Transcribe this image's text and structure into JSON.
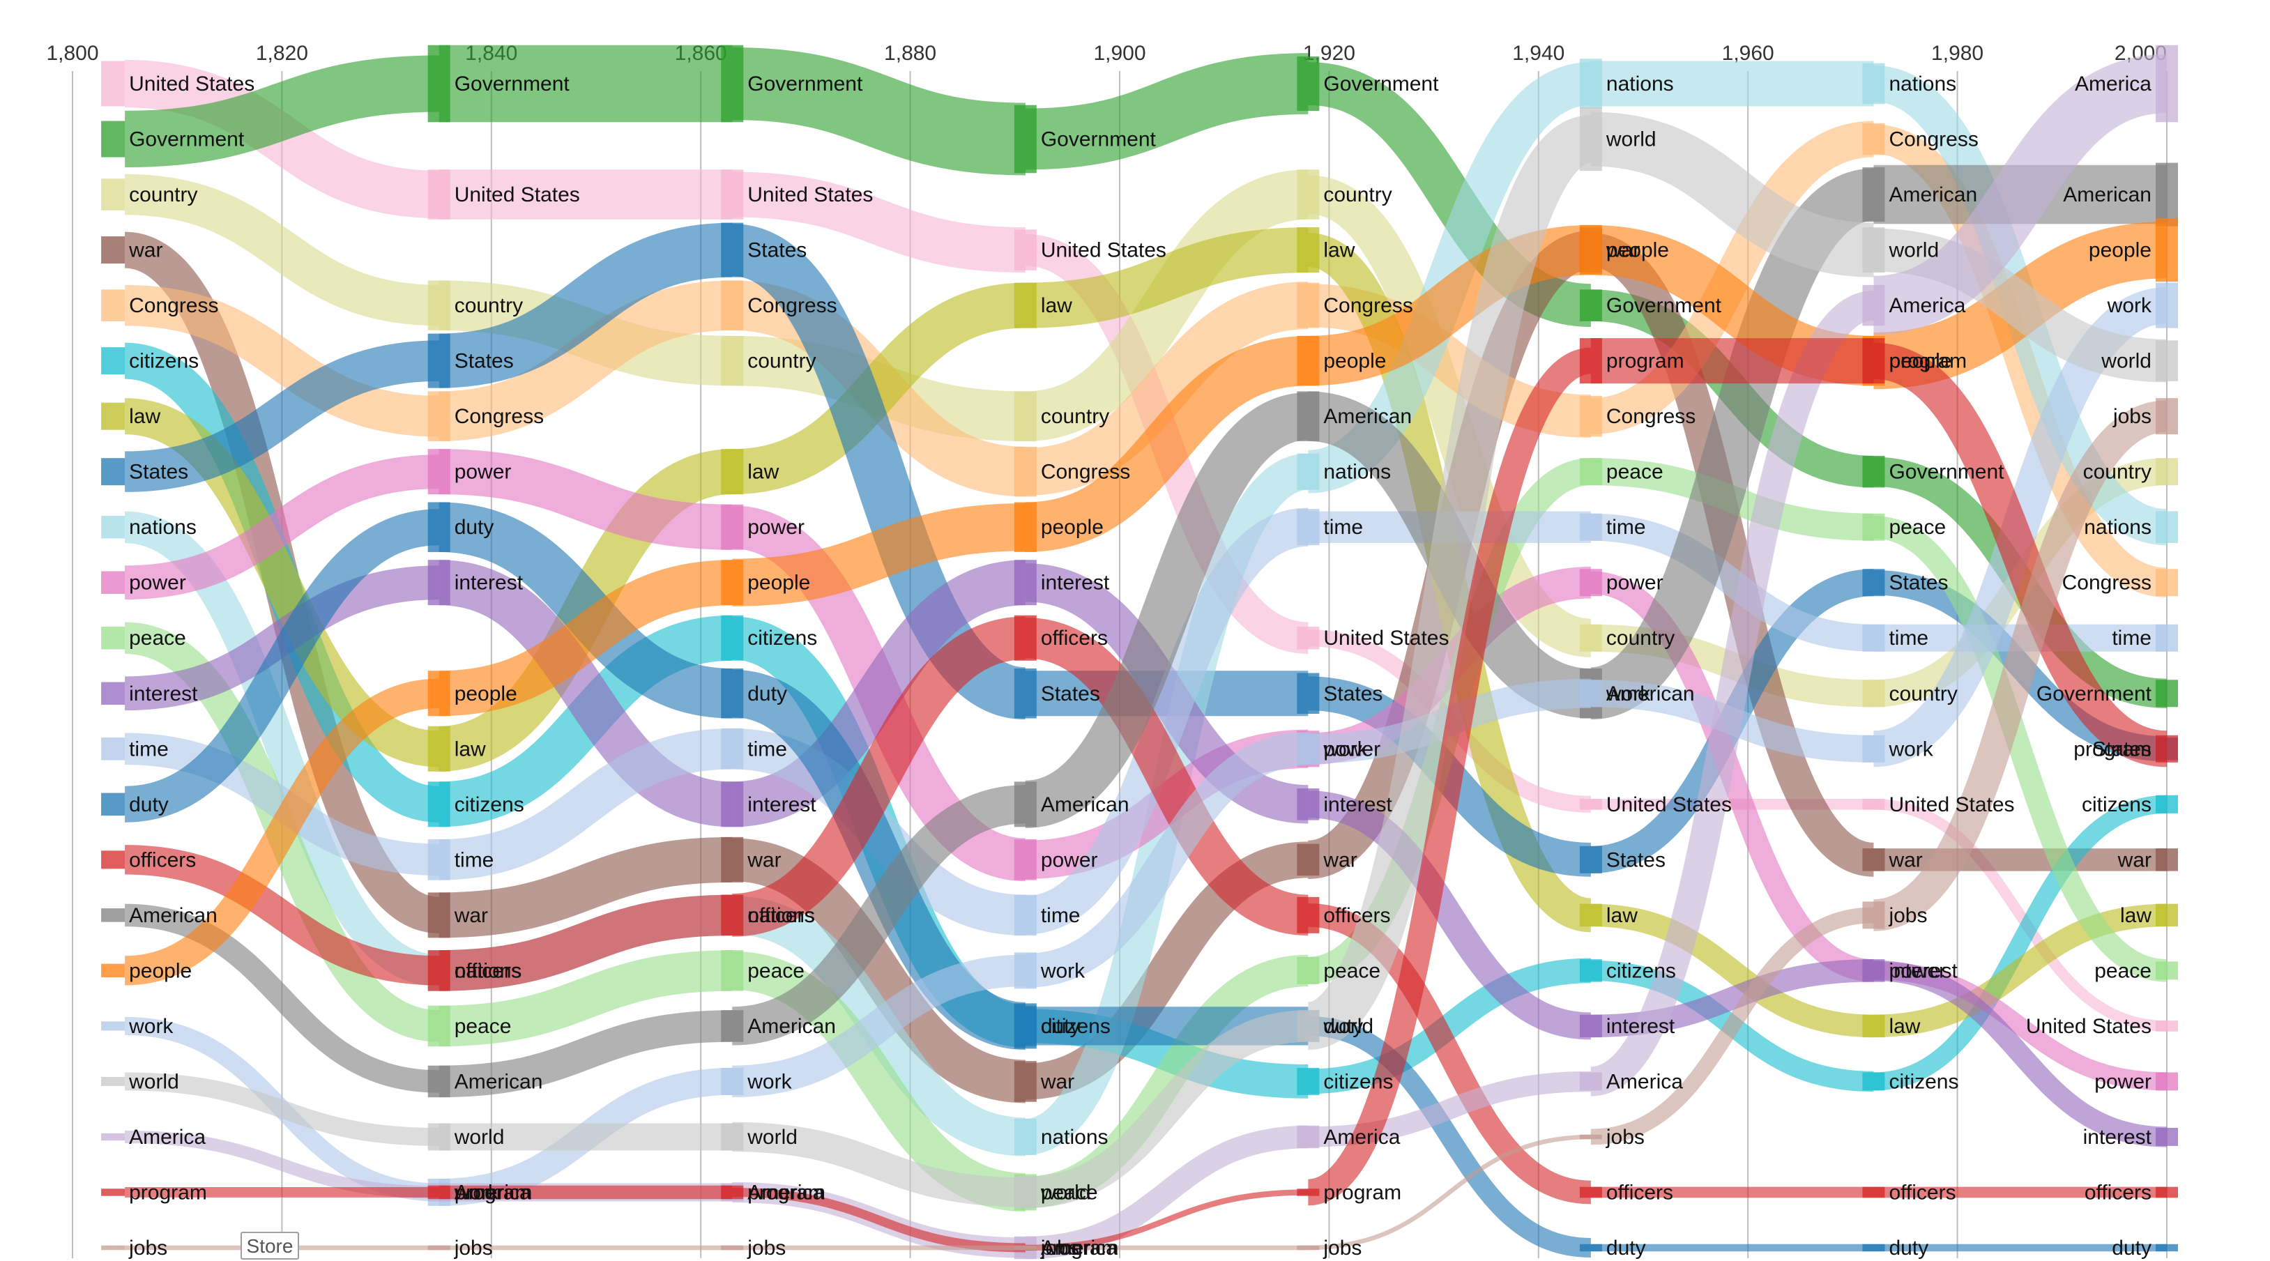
{
  "store_button": {
    "label": "Store"
  },
  "chart_data": {
    "type": "bump",
    "title": "",
    "xlabel": "",
    "ylabel": "",
    "xlim": [
      1800,
      2000
    ],
    "x_ticks": [
      1800,
      1820,
      1840,
      1860,
      1880,
      1900,
      1920,
      1940,
      1960,
      1980,
      2000
    ],
    "x_tick_labels": [
      "1,800",
      "1,820",
      "1,840",
      "1,860",
      "1,880",
      "1,900",
      "1,920",
      "1,940",
      "1,960",
      "1,980",
      "2,000"
    ],
    "rank_count": 22,
    "columns": [
      1805,
      1835,
      1863,
      1891,
      1918,
      1945,
      1972,
      2000
    ],
    "colors": {
      "United States": "#f7b6d2",
      "Government": "#2ca02c",
      "country": "#dbdb8d",
      "war": "#8c564b",
      "Congress": "#ffbb78",
      "citizens": "#17becf",
      "law": "#bcbd22",
      "States": "#1f77b4",
      "nations": "#9edae5",
      "power": "#e377c2",
      "peace": "#98df8a",
      "interest": "#9467bd",
      "time": "#aec7e8",
      "duty": "#1f77b4",
      "officers": "#d62728",
      "American": "#7f7f7f",
      "people": "#ff7f0e",
      "work": "#aec7e8",
      "world": "#c7c7c7",
      "America": "#c5b0d5",
      "program": "#d62728",
      "jobs": "#c49c94"
    },
    "series": [
      {
        "name": "United States",
        "ranks": [
          1,
          3,
          3,
          4,
          11,
          14,
          14,
          18
        ],
        "weights": [
          0.5,
          0.55,
          0.55,
          0.45,
          0.25,
          0.12,
          0.12,
          0.12
        ]
      },
      {
        "name": "Government",
        "ranks": [
          2,
          1,
          1,
          2,
          1,
          5,
          8,
          12
        ],
        "weights": [
          0.4,
          0.85,
          0.85,
          0.75,
          0.6,
          0.35,
          0.35,
          0.3
        ]
      },
      {
        "name": "country",
        "ranks": [
          3,
          5,
          6,
          7,
          3,
          11,
          12,
          8
        ],
        "weights": [
          0.35,
          0.55,
          0.55,
          0.55,
          0.55,
          0.3,
          0.3,
          0.3
        ]
      },
      {
        "name": "war",
        "ranks": [
          4,
          16,
          15,
          19,
          15,
          4,
          15,
          15
        ],
        "weights": [
          0.3,
          0.5,
          0.5,
          0.45,
          0.35,
          0.5,
          0.25,
          0.25
        ]
      },
      {
        "name": "Congress",
        "ranks": [
          5,
          7,
          5,
          8,
          5,
          7,
          2,
          10
        ],
        "weights": [
          0.35,
          0.55,
          0.55,
          0.55,
          0.5,
          0.45,
          0.35,
          0.3
        ]
      },
      {
        "name": "citizens",
        "ranks": [
          6,
          14,
          11,
          18,
          19,
          17,
          19,
          14
        ],
        "weights": [
          0.3,
          0.5,
          0.5,
          0.45,
          0.3,
          0.25,
          0.2,
          0.2
        ]
      },
      {
        "name": "law",
        "ranks": [
          7,
          13,
          8,
          5,
          4,
          16,
          18,
          16
        ],
        "weights": [
          0.3,
          0.5,
          0.5,
          0.5,
          0.5,
          0.25,
          0.25,
          0.25
        ]
      },
      {
        "name": "States",
        "ranks": [
          8,
          6,
          4,
          12,
          12,
          15,
          10,
          13
        ],
        "weights": [
          0.3,
          0.6,
          0.6,
          0.55,
          0.45,
          0.3,
          0.3,
          0.25
        ]
      },
      {
        "name": "nations",
        "ranks": [
          9,
          17,
          16,
          20,
          8,
          1,
          1,
          9
        ],
        "weights": [
          0.25,
          0.45,
          0.45,
          0.4,
          0.4,
          0.55,
          0.45,
          0.35
        ]
      },
      {
        "name": "power",
        "ranks": [
          10,
          8,
          9,
          15,
          13,
          10,
          17,
          19
        ],
        "weights": [
          0.25,
          0.5,
          0.5,
          0.45,
          0.4,
          0.3,
          0.2,
          0.2
        ]
      },
      {
        "name": "peace",
        "ranks": [
          11,
          18,
          17,
          21,
          17,
          8,
          9,
          17
        ],
        "weights": [
          0.25,
          0.45,
          0.45,
          0.4,
          0.3,
          0.3,
          0.3,
          0.2
        ]
      },
      {
        "name": "interest",
        "ranks": [
          12,
          10,
          14,
          10,
          14,
          18,
          17,
          20
        ],
        "weights": [
          0.25,
          0.5,
          0.5,
          0.5,
          0.35,
          0.25,
          0.25,
          0.2
        ]
      },
      {
        "name": "time",
        "ranks": [
          13,
          15,
          13,
          16,
          9,
          9,
          11,
          11
        ],
        "weights": [
          0.25,
          0.45,
          0.45,
          0.45,
          0.4,
          0.3,
          0.3,
          0.3
        ]
      },
      {
        "name": "duty",
        "ranks": [
          14,
          9,
          12,
          18,
          18,
          22,
          22,
          22
        ],
        "weights": [
          0.25,
          0.55,
          0.55,
          0.5,
          0.35,
          0.08,
          0.08,
          0.08
        ]
      },
      {
        "name": "officers",
        "ranks": [
          15,
          17,
          16,
          11,
          16,
          21,
          21,
          21
        ],
        "weights": [
          0.2,
          0.45,
          0.45,
          0.5,
          0.4,
          0.12,
          0.12,
          0.12
        ]
      },
      {
        "name": "American",
        "ranks": [
          16,
          19,
          18,
          14,
          7,
          12,
          3,
          3
        ],
        "weights": [
          0.15,
          0.35,
          0.35,
          0.5,
          0.55,
          0.55,
          0.6,
          0.7
        ]
      },
      {
        "name": "people",
        "ranks": [
          17,
          12,
          10,
          9,
          6,
          4,
          6,
          4
        ],
        "weights": [
          0.15,
          0.5,
          0.5,
          0.55,
          0.55,
          0.55,
          0.55,
          0.7
        ]
      },
      {
        "name": "work",
        "ranks": [
          18,
          21,
          19,
          17,
          13,
          12,
          13,
          5
        ],
        "weights": [
          0.1,
          0.3,
          0.3,
          0.4,
          0.35,
          0.3,
          0.3,
          0.5
        ]
      },
      {
        "name": "world",
        "ranks": [
          19,
          20,
          20,
          21,
          18,
          2,
          4,
          6
        ],
        "weights": [
          0.1,
          0.3,
          0.3,
          0.35,
          0.35,
          0.7,
          0.5,
          0.45
        ]
      },
      {
        "name": "America",
        "ranks": [
          20,
          21,
          21,
          22,
          20,
          19,
          5,
          1
        ],
        "weights": [
          0.08,
          0.2,
          0.2,
          0.25,
          0.25,
          0.2,
          0.45,
          0.85
        ]
      },
      {
        "name": "program",
        "ranks": [
          21,
          21,
          21,
          22,
          21,
          6,
          6,
          13
        ],
        "weights": [
          0.08,
          0.15,
          0.15,
          0.05,
          0.08,
          0.5,
          0.5,
          0.3
        ]
      },
      {
        "name": "jobs",
        "ranks": [
          22,
          22,
          22,
          22,
          22,
          20,
          16,
          7
        ],
        "weights": [
          0.05,
          0.05,
          0.05,
          0.05,
          0.05,
          0.05,
          0.3,
          0.4
        ]
      }
    ]
  }
}
